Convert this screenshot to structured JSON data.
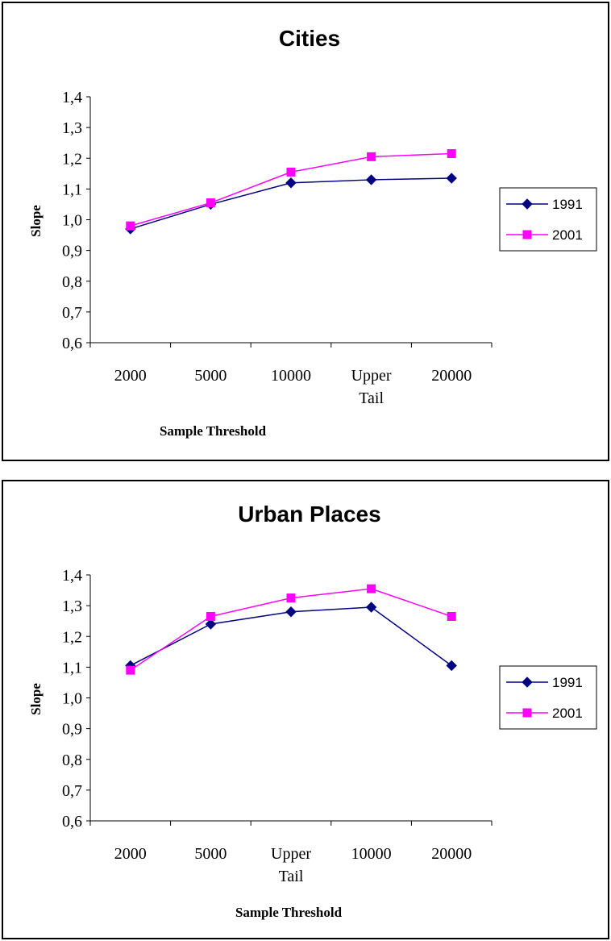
{
  "chart_data": [
    {
      "type": "line",
      "title": "Cities",
      "xlabel": "Sample Threshold",
      "ylabel": "Slope",
      "categories": [
        "2000",
        "5000",
        "10000",
        "Upper Tail",
        "20000"
      ],
      "category_lines": [
        [
          "2000"
        ],
        [
          "5000"
        ],
        [
          "10000"
        ],
        [
          "Upper",
          "Tail"
        ],
        [
          "20000"
        ]
      ],
      "y_ticks": [
        "0,6",
        "0,7",
        "0,8",
        "0,9",
        "1,0",
        "1,1",
        "1,2",
        "1,3",
        "1,4"
      ],
      "ylim": [
        0.6,
        1.4
      ],
      "grid": false,
      "legend_position": "right",
      "series": [
        {
          "name": "1991",
          "color": "#000080",
          "marker": "diamond",
          "values": [
            0.97,
            1.05,
            1.12,
            1.13,
            1.135
          ]
        },
        {
          "name": "2001",
          "color": "#ff00ff",
          "marker": "square",
          "values": [
            0.98,
            1.055,
            1.155,
            1.205,
            1.215
          ]
        }
      ]
    },
    {
      "type": "line",
      "title": "Urban Places",
      "xlabel": "Sample Threshold",
      "ylabel": "Slope",
      "categories": [
        "2000",
        "5000",
        "Upper Tail",
        "10000",
        "20000"
      ],
      "category_lines": [
        [
          "2000"
        ],
        [
          "5000"
        ],
        [
          "Upper",
          "Tail"
        ],
        [
          "10000"
        ],
        [
          "20000"
        ]
      ],
      "y_ticks": [
        "0,6",
        "0,7",
        "0,8",
        "0,9",
        "1,0",
        "1,1",
        "1,2",
        "1,3",
        "1,4"
      ],
      "ylim": [
        0.6,
        1.4
      ],
      "grid": false,
      "legend_position": "right",
      "series": [
        {
          "name": "1991",
          "color": "#000080",
          "marker": "diamond",
          "values": [
            1.105,
            1.24,
            1.28,
            1.295,
            1.105
          ]
        },
        {
          "name": "2001",
          "color": "#ff00ff",
          "marker": "square",
          "values": [
            1.09,
            1.265,
            1.325,
            1.355,
            1.265
          ]
        }
      ]
    }
  ]
}
